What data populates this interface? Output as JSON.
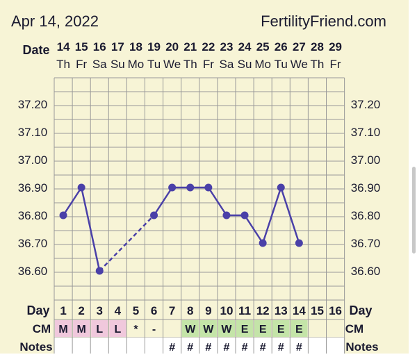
{
  "header": {
    "date": "Apr 14, 2022",
    "site": "FertilityFriend.com"
  },
  "row_labels": {
    "date": "Date",
    "day": "Day",
    "cm": "CM",
    "notes": "Notes"
  },
  "dates": [
    "14",
    "15",
    "16",
    "17",
    "18",
    "19",
    "20",
    "21",
    "22",
    "23",
    "24",
    "25",
    "26",
    "27",
    "28",
    "29"
  ],
  "weekdays": [
    "Th",
    "Fr",
    "Sa",
    "Su",
    "Mo",
    "Tu",
    "We",
    "Th",
    "Fr",
    "Sa",
    "Su",
    "Mo",
    "Tu",
    "We",
    "Th",
    "Fr"
  ],
  "cycle_days": [
    "1",
    "2",
    "3",
    "4",
    "5",
    "6",
    "7",
    "8",
    "9",
    "10",
    "11",
    "12",
    "13",
    "14",
    "15",
    "16"
  ],
  "cm": [
    {
      "text": "M",
      "color": "#f0c8dc"
    },
    {
      "text": "M",
      "color": "#f0c8dc"
    },
    {
      "text": "L",
      "color": "#f0c8dc"
    },
    {
      "text": "L",
      "color": "#f0c8dc"
    },
    {
      "text": "*",
      "color": ""
    },
    {
      "text": "-",
      "color": ""
    },
    {
      "text": "",
      "color": ""
    },
    {
      "text": "W",
      "color": "#c4e4a8"
    },
    {
      "text": "W",
      "color": "#c4e4a8"
    },
    {
      "text": "W",
      "color": "#c4e4a8"
    },
    {
      "text": "E",
      "color": "#c4e4a8"
    },
    {
      "text": "E",
      "color": "#c4e4a8"
    },
    {
      "text": "E",
      "color": "#c4e4a8"
    },
    {
      "text": "E",
      "color": "#c4e4a8"
    },
    {
      "text": "",
      "color": ""
    },
    {
      "text": "",
      "color": ""
    }
  ],
  "notes": [
    "",
    "",
    "",
    "",
    "",
    "",
    "#",
    "#",
    "#",
    "#",
    "#",
    "#",
    "#",
    "#",
    "",
    ""
  ],
  "colors": {
    "background": "#f7f4d6",
    "grid": "#999999",
    "line": "#4a40a8",
    "text": "#1a1a30"
  },
  "chart_data": {
    "type": "line",
    "x_label": "Day",
    "y_ticks": [
      "37.20",
      "37.10",
      "37.00",
      "36.90",
      "36.80",
      "36.70",
      "36.60"
    ],
    "ylim": [
      36.55,
      37.25
    ],
    "points": [
      {
        "day": 1,
        "temp": 36.8
      },
      {
        "day": 2,
        "temp": 36.9
      },
      {
        "day": 3,
        "temp": 36.6
      },
      {
        "day": 6,
        "temp": 36.8
      },
      {
        "day": 7,
        "temp": 36.9
      },
      {
        "day": 8,
        "temp": 36.9
      },
      {
        "day": 9,
        "temp": 36.9
      },
      {
        "day": 10,
        "temp": 36.8
      },
      {
        "day": 11,
        "temp": 36.8
      },
      {
        "day": 12,
        "temp": 36.7
      },
      {
        "day": 13,
        "temp": 36.9
      },
      {
        "day": 14,
        "temp": 36.7
      }
    ],
    "dashed_segments": [
      [
        3,
        6
      ]
    ]
  }
}
